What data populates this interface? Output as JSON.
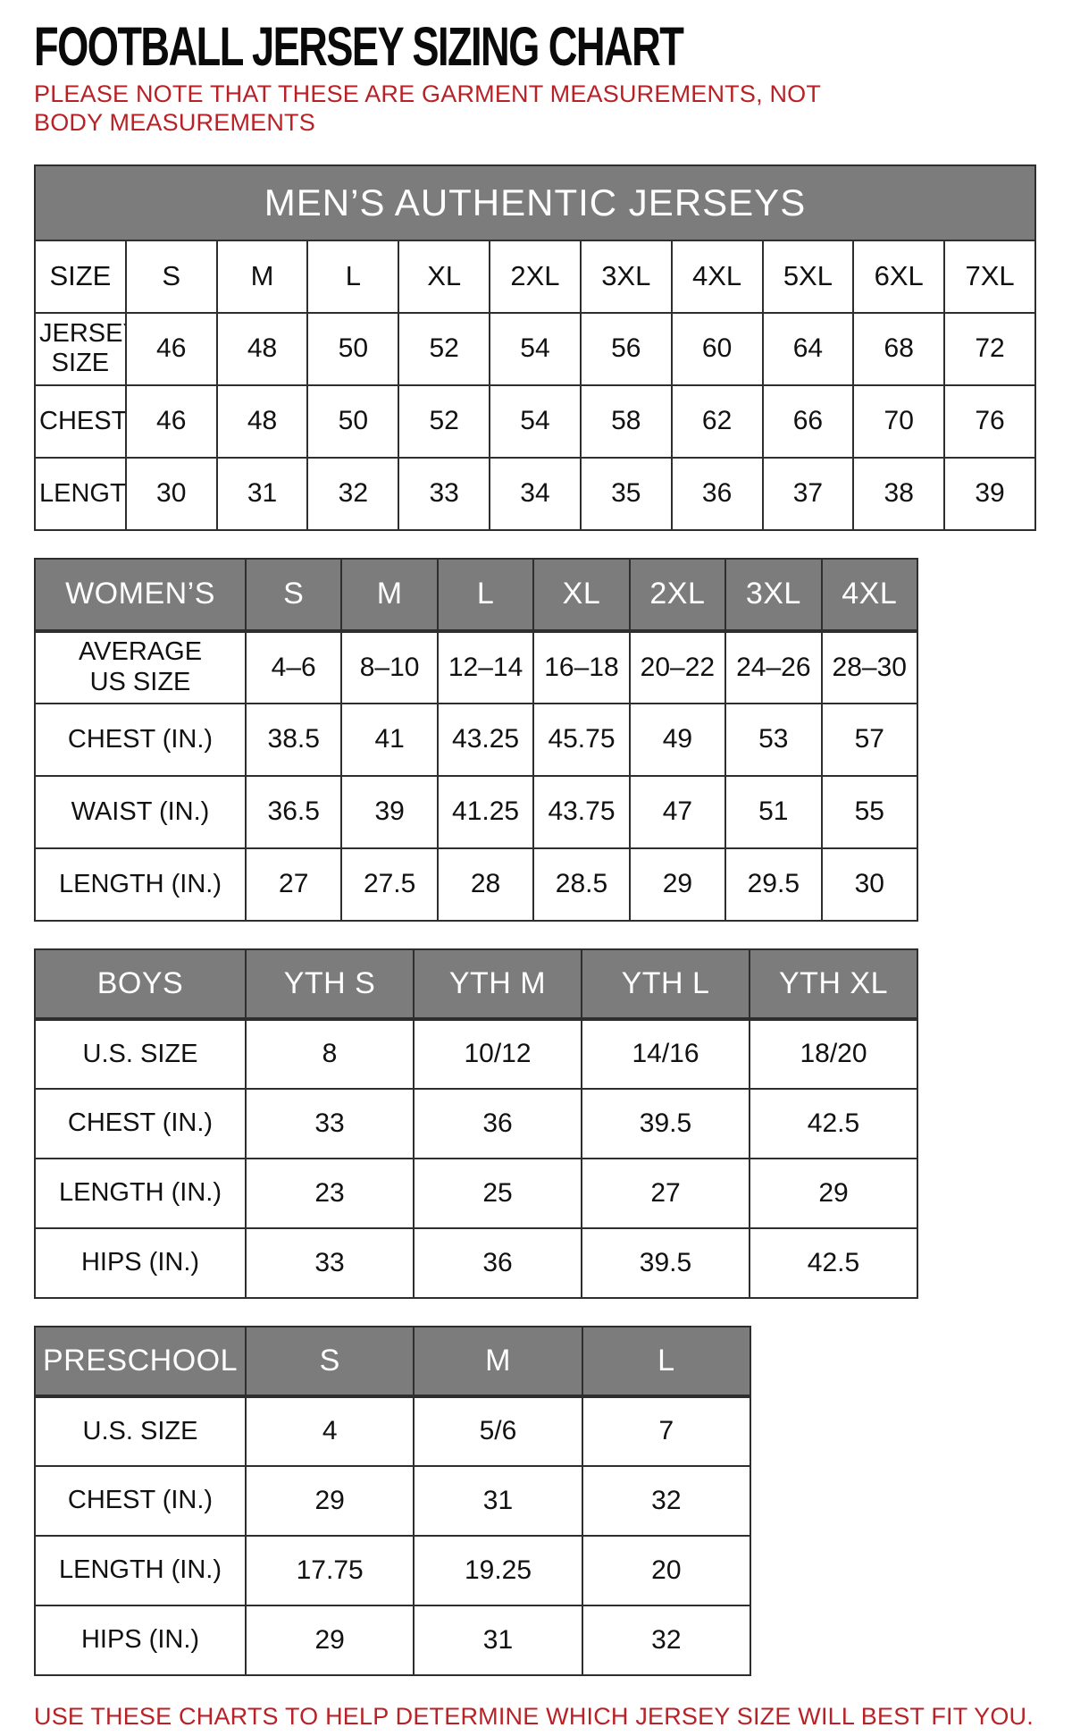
{
  "page": {
    "title": "FOOTBALL JERSEY SIZING CHART",
    "note_top": "PLEASE NOTE THAT THESE ARE GARMENT MEASUREMENTS, NOT BODY MEASUREMENTS",
    "note_bottom": "USE THESE CHARTS TO HELP DETERMINE WHICH JERSEY SIZE WILL BEST FIT YOU.",
    "colors": {
      "accent_red": "#b82227",
      "header_gray": "#7c7c7c",
      "border_dark": "#2e2e2e"
    }
  },
  "tables": {
    "mens": {
      "banner": "MEN’S AUTHENTIC JERSEYS",
      "gray_header": false,
      "rows": [
        [
          "SIZE",
          "S",
          "M",
          "L",
          "XL",
          "2XL",
          "3XL",
          "4XL",
          "5XL",
          "6XL",
          "7XL"
        ],
        [
          "JERSEY SIZE",
          "46",
          "48",
          "50",
          "52",
          "54",
          "56",
          "60",
          "64",
          "68",
          "72"
        ],
        [
          "CHEST(IN.)",
          "46",
          "48",
          "50",
          "52",
          "54",
          "58",
          "62",
          "66",
          "70",
          "76"
        ],
        [
          "LENGTH(IN.)",
          "30",
          "31",
          "32",
          "33",
          "34",
          "35",
          "36",
          "37",
          "38",
          "39"
        ]
      ]
    },
    "womens": {
      "gray_header": true,
      "rows": [
        [
          "WOMEN’S",
          "S",
          "M",
          "L",
          "XL",
          "2XL",
          "3XL",
          "4XL"
        ],
        [
          "AVERAGE\nUS SIZE",
          "4–6",
          "8–10",
          "12–14",
          "16–18",
          "20–22",
          "24–26",
          "28–30"
        ],
        [
          "CHEST (IN.)",
          "38.5",
          "41",
          "43.25",
          "45.75",
          "49",
          "53",
          "57"
        ],
        [
          "WAIST (IN.)",
          "36.5",
          "39",
          "41.25",
          "43.75",
          "47",
          "51",
          "55"
        ],
        [
          "LENGTH (IN.)",
          "27",
          "27.5",
          "28",
          "28.5",
          "29",
          "29.5",
          "30"
        ]
      ]
    },
    "boys": {
      "gray_header": true,
      "rows": [
        [
          "BOYS",
          "YTH S",
          "YTH M",
          "YTH L",
          "YTH XL"
        ],
        [
          "U.S. SIZE",
          "8",
          "10/12",
          "14/16",
          "18/20"
        ],
        [
          "CHEST (IN.)",
          "33",
          "36",
          "39.5",
          "42.5"
        ],
        [
          "LENGTH (IN.)",
          "23",
          "25",
          "27",
          "29"
        ],
        [
          "HIPS (IN.)",
          "33",
          "36",
          "39.5",
          "42.5"
        ]
      ]
    },
    "preschool": {
      "gray_header": true,
      "rows": [
        [
          "PRESCHOOL",
          "S",
          "M",
          "L"
        ],
        [
          "U.S. SIZE",
          "4",
          "5/6",
          "7"
        ],
        [
          "CHEST (IN.)",
          "29",
          "31",
          "32"
        ],
        [
          "LENGTH (IN.)",
          "17.75",
          "19.25",
          "20"
        ],
        [
          "HIPS (IN.)",
          "29",
          "31",
          "32"
        ]
      ]
    }
  }
}
